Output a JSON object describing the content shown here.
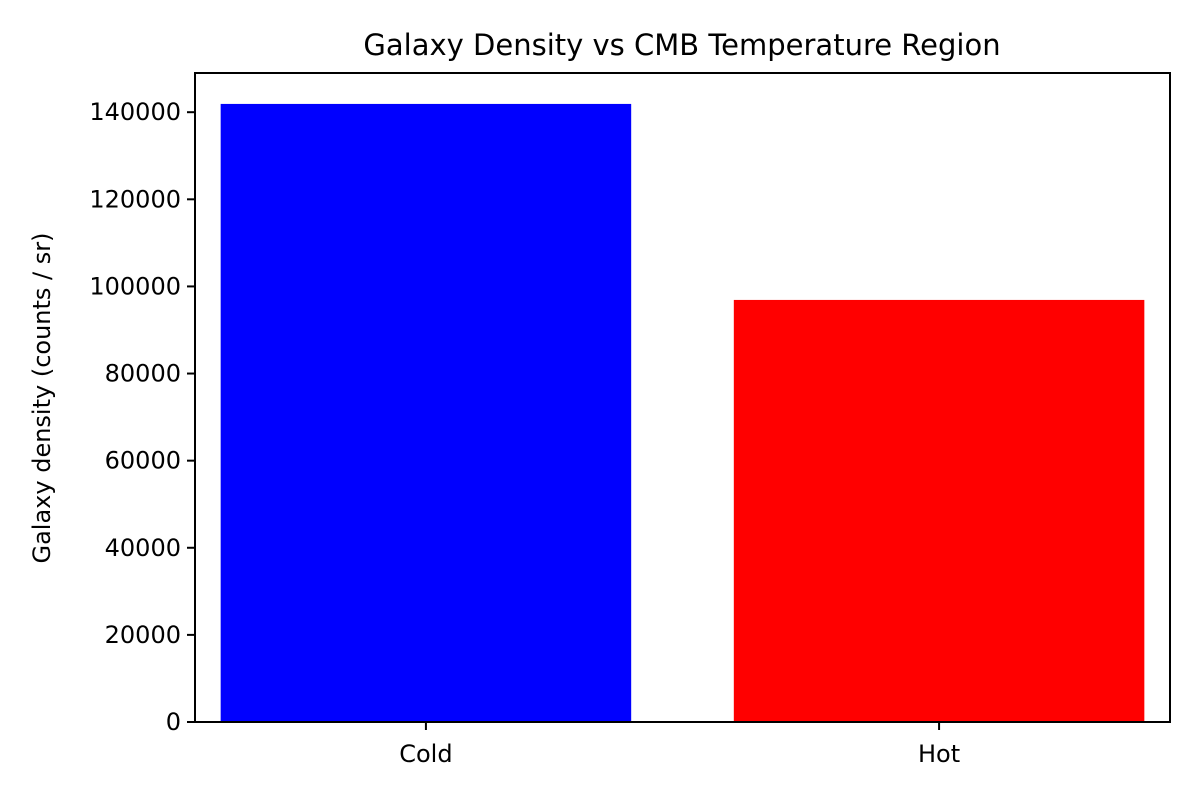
{
  "chart_data": {
    "type": "bar",
    "title": "Galaxy Density vs CMB Temperature Region",
    "xlabel": "",
    "ylabel": "Galaxy density (counts / sr)",
    "categories": [
      "Cold",
      "Hot"
    ],
    "values": [
      141900,
      96900
    ],
    "colors": [
      "#0000ff",
      "#ff0000"
    ],
    "ylim": [
      0,
      148999
    ],
    "yticks": [
      0,
      20000,
      40000,
      60000,
      80000,
      100000,
      120000,
      140000
    ],
    "grid": false,
    "legend": "none"
  }
}
